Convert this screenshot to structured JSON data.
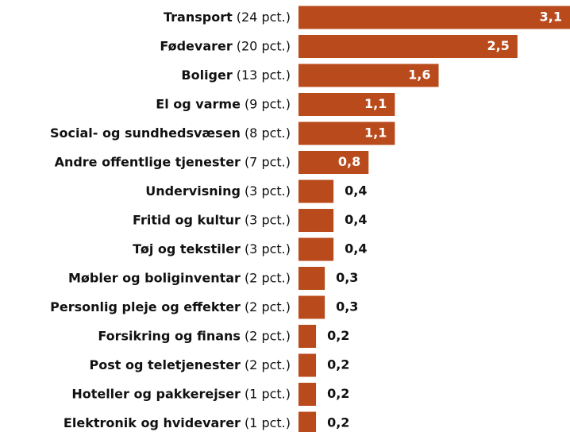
{
  "chart_data": {
    "type": "bar",
    "orientation": "horizontal",
    "color": "#b94a1b",
    "categories": [
      "Transport",
      "Fødevarer",
      "Boliger",
      "El og varme",
      "Social- og sundhedsvæsen",
      "Andre offentlige tjenester",
      "Undervisning",
      "Fritid og kultur",
      "Tøj og tekstiler",
      "Møbler og boliginventar",
      "Personlig pleje og effekter",
      "Forsikring og finans",
      "Post og teletjenester",
      "Hoteller og pakkerejser",
      "Elektronik og hvidevarer"
    ],
    "category_notes": [
      "(24 pct.)",
      "(20 pct.)",
      "(13 pct.)",
      "(9 pct.)",
      "(8 pct.)",
      "(7 pct.)",
      "(3 pct.)",
      "(3 pct.)",
      "(3 pct.)",
      "(2 pct.)",
      "(2 pct.)",
      "(2 pct.)",
      "(2 pct.)",
      "(1 pct.)",
      "(1 pct.)"
    ],
    "values": [
      3.1,
      2.5,
      1.6,
      1.1,
      1.1,
      0.8,
      0.4,
      0.4,
      0.4,
      0.3,
      0.3,
      0.2,
      0.2,
      0.2,
      0.2
    ],
    "value_labels": [
      "3,1",
      "2,5",
      "1,6",
      "1,1",
      "1,1",
      "0,8",
      "0,4",
      "0,4",
      "0,4",
      "0,3",
      "0,3",
      "0,2",
      "0,2",
      "0,2",
      "0,2"
    ]
  }
}
